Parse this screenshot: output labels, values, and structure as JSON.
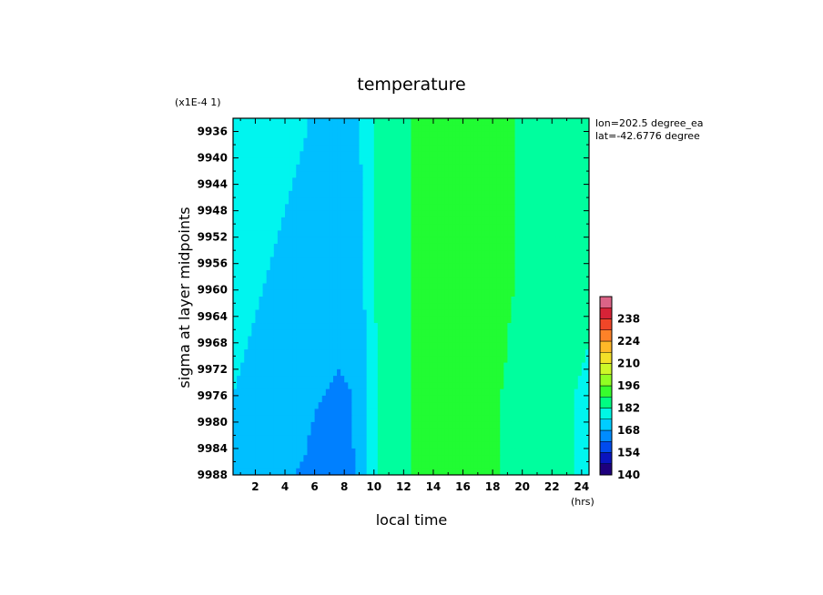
{
  "chart_data": {
    "type": "heatmap",
    "title": "temperature",
    "xlabel": "local time",
    "ylabel": "sigma at layer midpoints",
    "x_unit": "(hrs)",
    "y_scale_note": "(x1E-4 1)",
    "xlim": [
      0.5,
      24.5
    ],
    "ylim": [
      9934,
      9988
    ],
    "y_inverted": true,
    "x_ticks": [
      2,
      4,
      6,
      8,
      10,
      12,
      14,
      16,
      18,
      20,
      22,
      24
    ],
    "y_ticks": [
      9936,
      9940,
      9944,
      9948,
      9952,
      9956,
      9960,
      9964,
      9968,
      9972,
      9976,
      9980,
      9984,
      9988
    ],
    "annotations": [
      "lon=202.5 degree_ea",
      "lat=-42.6776 degree"
    ],
    "colorbar": {
      "min": 140,
      "max": 252,
      "step": 7,
      "tick_labels": [
        140,
        154,
        168,
        182,
        196,
        210,
        224,
        238
      ]
    },
    "x": [
      0.5,
      1.5,
      2.5,
      3.5,
      4.5,
      5.5,
      6.5,
      7.5,
      8.5,
      9.5,
      10.5,
      11.5,
      12.5,
      13.5,
      14.5,
      15.5,
      16.5,
      17.5,
      18.5,
      19.5,
      20.5,
      21.5,
      22.5,
      23.5,
      24.5
    ],
    "y": [
      9936,
      9944,
      9952,
      9960,
      9968,
      9976,
      9984,
      9988
    ],
    "z": [
      [
        180,
        179,
        178,
        177,
        176,
        175,
        174,
        173,
        174,
        176,
        186,
        188,
        189,
        190,
        191,
        192,
        192,
        192,
        190,
        189,
        187,
        186,
        185,
        184,
        184
      ],
      [
        179,
        178,
        177,
        176,
        175,
        174,
        173,
        172,
        173,
        176,
        186,
        188,
        189,
        190,
        191,
        192,
        192,
        192,
        190,
        189,
        187,
        186,
        185,
        184,
        183
      ],
      [
        178,
        177,
        176,
        175,
        174,
        173,
        172,
        171,
        172,
        176,
        186,
        188,
        189,
        190,
        191,
        192,
        192,
        192,
        190,
        189,
        187,
        186,
        185,
        184,
        183
      ],
      [
        177,
        176,
        175,
        174,
        173,
        172,
        171,
        170,
        171,
        176,
        186,
        188,
        189,
        190,
        191,
        192,
        192,
        192,
        190,
        189,
        187,
        186,
        185,
        183,
        182
      ],
      [
        176,
        175,
        174,
        173,
        172,
        171,
        170,
        169,
        169,
        175,
        186,
        188,
        189,
        190,
        191,
        192,
        192,
        192,
        190,
        188,
        187,
        185,
        184,
        183,
        182
      ],
      [
        175,
        174,
        173,
        172,
        171,
        169,
        168,
        167,
        168,
        175,
        186,
        188,
        189,
        190,
        191,
        192,
        192,
        192,
        189,
        188,
        186,
        185,
        184,
        182,
        181
      ],
      [
        174,
        173,
        172,
        171,
        169,
        168,
        166,
        166,
        167,
        175,
        186,
        188,
        189,
        190,
        191,
        192,
        192,
        192,
        189,
        188,
        186,
        185,
        183,
        182,
        181
      ],
      [
        174,
        173,
        172,
        170,
        168,
        167,
        165,
        165,
        166,
        175,
        186,
        188,
        189,
        190,
        191,
        192,
        192,
        192,
        189,
        188,
        186,
        184,
        183,
        182,
        180
      ]
    ]
  }
}
